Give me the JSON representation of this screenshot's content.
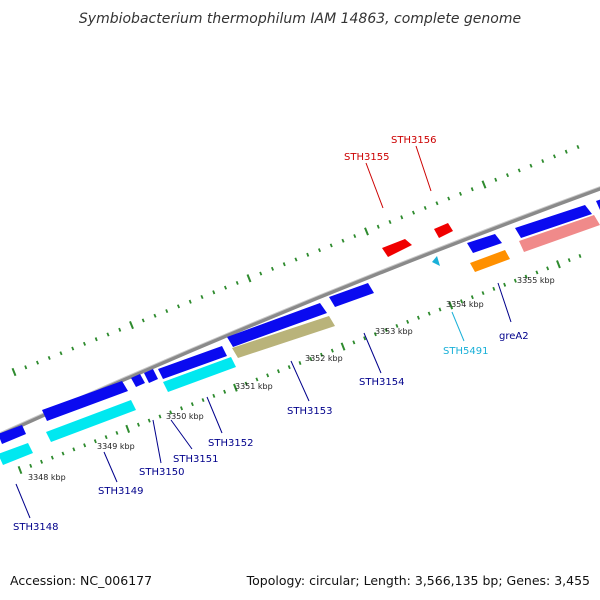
{
  "title": "Symbiobacterium thermophilum IAM 14863, complete genome",
  "footer": {
    "accession": "Accession: NC_006177",
    "summary": "Topology: circular; Length: 3,566,135 bp; Genes: 3,455"
  },
  "colors": {
    "backbone": "#8a8a8a",
    "tick": "#2e8b2e",
    "label_dark_blue": "#00008b",
    "label_red": "#cc0000",
    "label_cyan": "#1ab0d8",
    "gene_blue": "#0a0af0",
    "gene_cyan": "#00e8f0",
    "gene_olive": "#b9b37a",
    "gene_red": "#f00000",
    "gene_pink": "#f08a8a",
    "gene_orange": "#ff9000"
  },
  "scale_labels": [
    "3348 kbp",
    "3349 kbp",
    "3350 kbp",
    "3351 kbp",
    "3352 kbp",
    "3353 kbp",
    "3354 kbp",
    "3355 kbp"
  ],
  "genes": [
    {
      "id": "g-blue-1",
      "label": "",
      "color": "gene_blue",
      "strand": "+"
    },
    {
      "id": "g-cyan-1",
      "label": "STH3148",
      "color": "gene_cyan",
      "strand": "-"
    },
    {
      "id": "g-blue-2",
      "label": "STH3149",
      "color": "gene_blue",
      "strand": "+"
    },
    {
      "id": "g-cyan-2",
      "label": "",
      "color": "gene_cyan",
      "strand": "-"
    },
    {
      "id": "g-blue-3",
      "label": "STH3150",
      "color": "gene_blue",
      "strand": "+"
    },
    {
      "id": "g-blue-4",
      "label": "STH3151",
      "color": "gene_blue",
      "strand": "+"
    },
    {
      "id": "g-blue-5",
      "label": "",
      "color": "gene_blue",
      "strand": "+"
    },
    {
      "id": "g-cyan-3",
      "label": "STH3152",
      "color": "gene_cyan",
      "strand": "-"
    },
    {
      "id": "g-blue-6",
      "label": "",
      "color": "gene_blue",
      "strand": "+"
    },
    {
      "id": "g-olive-1",
      "label": "STH3153",
      "color": "gene_olive",
      "strand": "-"
    },
    {
      "id": "g-blue-7",
      "label": "STH3154",
      "color": "gene_blue",
      "strand": "+"
    },
    {
      "id": "g-red-1",
      "label": "STH3155",
      "color": "gene_red",
      "strand": "+"
    },
    {
      "id": "g-red-2",
      "label": "STH3156",
      "color": "gene_red",
      "strand": "+"
    },
    {
      "id": "g-cyan-small",
      "label": "STH5491",
      "color": "gene_cyan",
      "strand": "-"
    },
    {
      "id": "g-blue-8",
      "label": "",
      "color": "gene_blue",
      "strand": "+"
    },
    {
      "id": "g-orange-1",
      "label": "greA2",
      "color": "gene_orange",
      "strand": "-"
    },
    {
      "id": "g-blue-9",
      "label": "",
      "color": "gene_blue",
      "strand": "+"
    },
    {
      "id": "g-pink-1",
      "label": "",
      "color": "gene_pink",
      "strand": "-"
    },
    {
      "id": "g-blue-10",
      "label": "",
      "color": "gene_blue",
      "strand": "+"
    }
  ]
}
